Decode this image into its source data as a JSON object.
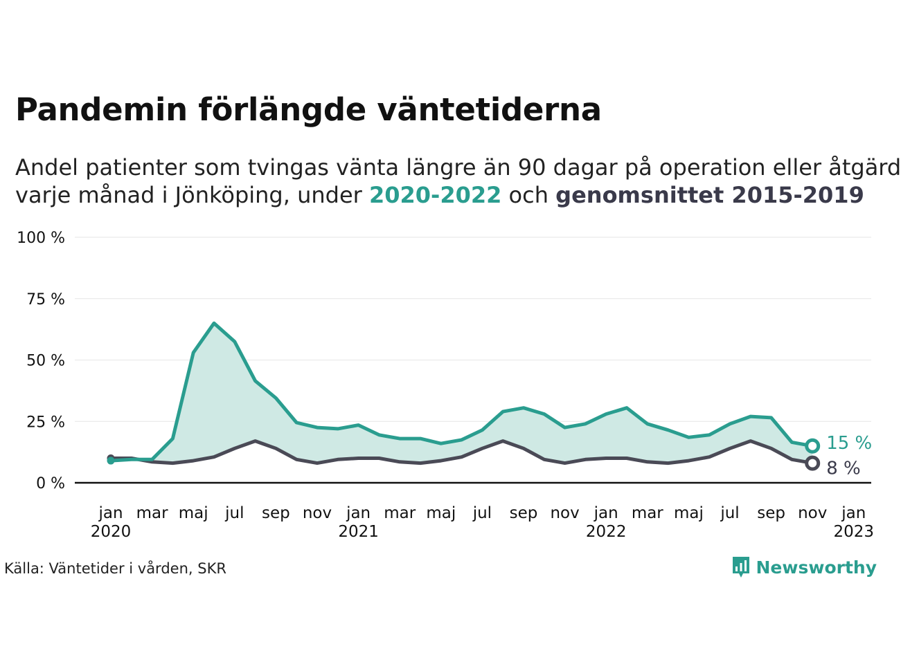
{
  "title": "Pandemin förlängde väntetiderna",
  "subtitle": {
    "line1": "Andel patienter som tvingas vänta längre än 90 dagar på operation eller åtgärd",
    "line2_prefix": "varje månad i Jönköping, under ",
    "highlight_teal": "2020-2022",
    "line2_mid": " och ",
    "highlight_dark": "genomsnittet 2015-2019"
  },
  "colors": {
    "teal": "#2a9d8f",
    "dark": "#4a4a56",
    "fill": "#cfe9e4"
  },
  "chart_data": {
    "type": "line",
    "x_months": [
      "2020-01",
      "2020-02",
      "2020-03",
      "2020-04",
      "2020-05",
      "2020-06",
      "2020-07",
      "2020-08",
      "2020-09",
      "2020-10",
      "2020-11",
      "2020-12",
      "2021-01",
      "2021-02",
      "2021-03",
      "2021-04",
      "2021-05",
      "2021-06",
      "2021-07",
      "2021-08",
      "2021-09",
      "2021-10",
      "2021-11",
      "2021-12",
      "2022-01",
      "2022-02",
      "2022-03",
      "2022-04",
      "2022-05",
      "2022-06",
      "2022-07",
      "2022-08",
      "2022-09",
      "2022-10",
      "2022-11"
    ],
    "series": [
      {
        "name": "2020-2022",
        "color": "#2a9d8f",
        "values": [
          9,
          9.5,
          9.5,
          18,
          53,
          65,
          57.5,
          41.5,
          34.5,
          24.5,
          22.5,
          22,
          23.5,
          19.5,
          18,
          18,
          16,
          17.5,
          21.5,
          29,
          30.5,
          28,
          22.5,
          24,
          28,
          30.5,
          24,
          21.5,
          18.5,
          19.5,
          24,
          27,
          26.5,
          16.5,
          15
        ]
      },
      {
        "name": "genomsnittet 2015-2019",
        "color": "#4a4a56",
        "values": [
          10,
          10,
          8.5,
          8,
          9,
          10.5,
          14,
          17,
          14,
          9.5,
          8,
          9.5,
          10,
          10,
          8.5,
          8,
          9,
          10.5,
          14,
          17,
          14,
          9.5,
          8,
          9.5,
          10,
          10,
          8.5,
          8,
          9,
          10.5,
          14,
          17,
          14,
          9.5,
          8
        ]
      }
    ],
    "end_labels": [
      "15 %",
      "8 %"
    ],
    "y_ticks": [
      "0 %",
      "25 %",
      "50 %",
      "75 %",
      "100 %"
    ],
    "y_tick_values": [
      0,
      25,
      50,
      75,
      100
    ],
    "ylim": [
      0,
      100
    ],
    "x_ticks": [
      {
        "month": "2020-01",
        "label": "jan",
        "year": "2020"
      },
      {
        "month": "2020-03",
        "label": "mar",
        "year": ""
      },
      {
        "month": "2020-05",
        "label": "maj",
        "year": ""
      },
      {
        "month": "2020-07",
        "label": "jul",
        "year": ""
      },
      {
        "month": "2020-09",
        "label": "sep",
        "year": ""
      },
      {
        "month": "2020-11",
        "label": "nov",
        "year": ""
      },
      {
        "month": "2021-01",
        "label": "jan",
        "year": "2021"
      },
      {
        "month": "2021-03",
        "label": "mar",
        "year": ""
      },
      {
        "month": "2021-05",
        "label": "maj",
        "year": ""
      },
      {
        "month": "2021-07",
        "label": "jul",
        "year": ""
      },
      {
        "month": "2021-09",
        "label": "sep",
        "year": ""
      },
      {
        "month": "2021-11",
        "label": "nov",
        "year": ""
      },
      {
        "month": "2022-01",
        "label": "jan",
        "year": "2022"
      },
      {
        "month": "2022-03",
        "label": "mar",
        "year": ""
      },
      {
        "month": "2022-05",
        "label": "maj",
        "year": ""
      },
      {
        "month": "2022-07",
        "label": "jul",
        "year": ""
      },
      {
        "month": "2022-09",
        "label": "sep",
        "year": ""
      },
      {
        "month": "2022-11",
        "label": "nov",
        "year": ""
      },
      {
        "month": "2023-01",
        "label": "jan",
        "year": "2023"
      }
    ],
    "grid": true,
    "area_between_series": true
  },
  "source": "Källa: Väntetider i vården, SKR",
  "brand": {
    "name": "Newsworthy",
    "icon": "bar-chart-speech-bubble-icon"
  }
}
